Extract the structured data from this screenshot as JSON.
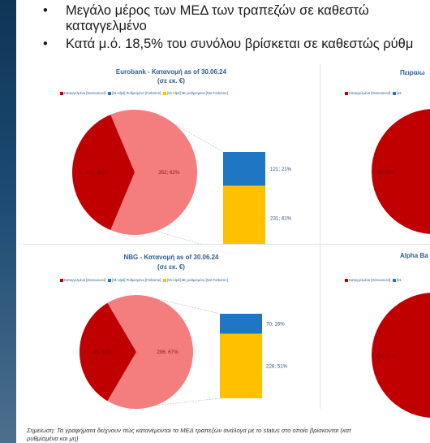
{
  "bullets": [
    "Μεγάλο μέρος των ΜΕΔ των τραπεζών σε καθεστώ",
    "καταγγελμένο",
    "Κατά μ.ό. 18,5% του συνόλου βρίσκεται σε καθεστώς ρύθμ"
  ],
  "bullet_symbol": "•",
  "legend_labels": [
    "Καταγγελμένα [Denounced]",
    "[91+dpd] Ρυθμισμένα [Forborne]",
    "[91+dpd] Μη ρυθμισμένα [Not Forborne]"
  ],
  "legend_partial": "[91",
  "colors": {
    "denounced": "#c00000",
    "denounced_light": "#f47d7d",
    "forborne": "#1f77c4",
    "not_forborne": "#ffc000",
    "title": "#2e5d8f"
  },
  "footnote": "Σημείωση: Τα γραφήματα δείχνουν πώς κατανέμονται τα ΜΕΔ τραπεζών ανάλογα με το status στο οποίο βρίσκονται (κατ",
  "footnote_line2": "ρυθμισμένα και μη)",
  "chart_data": [
    {
      "type": "pie",
      "title": "Eurobank - Κατανομή as of 30.06.24",
      "subtitle": "(σε εκ. €)",
      "slices": [
        {
          "name": "Καταγγελμένα [Denounced]",
          "value": 210,
          "pct": 38,
          "label": "210; 38%"
        },
        {
          "name": "Rest (exploded into bar)",
          "value": 352,
          "pct": 62,
          "label": "352; 62%"
        }
      ],
      "bar": [
        {
          "name": "[91+dpd] Ρυθμισμένα [Forborne]",
          "value": 121,
          "pct": 21,
          "label": "121; 21%"
        },
        {
          "name": "[91+dpd] Μη ρυθμισμένα [Not Forborne]",
          "value": 231,
          "pct": 41,
          "label": "231; 41%"
        }
      ]
    },
    {
      "type": "pie",
      "title": "NBG - Κατανομή as of 30.06.24",
      "subtitle": "(σε εκ. €)",
      "slices": [
        {
          "name": "Καταγγελμένα [Denounced]",
          "value": 146,
          "pct": 33,
          "label": "146; 33%"
        },
        {
          "name": "Rest (exploded into bar)",
          "value": 296,
          "pct": 67,
          "label": "296; 67%"
        }
      ],
      "bar": [
        {
          "name": "[91+dpd] Ρυθμισμένα [Forborne]",
          "value": 70,
          "pct": 16,
          "label": "70; 16%"
        },
        {
          "name": "[91+dpd] Μη ρυθμισμένα [Not Forborne]",
          "value": 226,
          "pct": 51,
          "label": "226; 51%"
        }
      ]
    },
    {
      "type": "pie",
      "title": "Πειραιω",
      "partial": true,
      "slices": [
        {
          "name": "Καταγγελμένα [Denounced]",
          "value": null,
          "pct": null,
          "label": "89; 89%"
        }
      ]
    },
    {
      "type": "pie",
      "title": "Alpha Ba",
      "partial": true,
      "slices": [
        {
          "name": "Καταγγελμένα [Denounced]",
          "value": null,
          "pct": null,
          "label": "411; 51%"
        }
      ]
    }
  ]
}
